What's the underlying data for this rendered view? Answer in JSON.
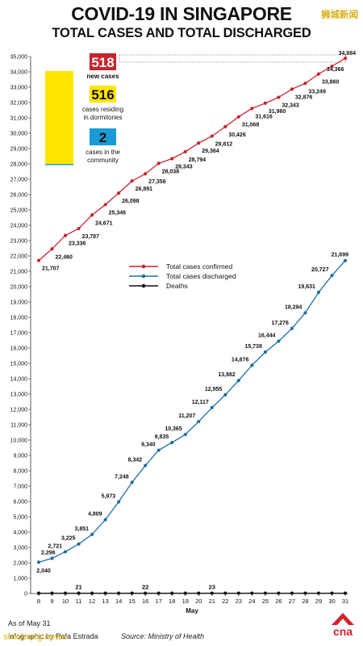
{
  "header": {
    "title": "COVID-19 IN SINGAPORE",
    "subtitle": "TOTAL CASES AND TOTAL DISCHARGED"
  },
  "watermark_top": "狮城新闻",
  "watermark_bottom": "shicheng.news",
  "callouts": {
    "new_cases": {
      "value": "518",
      "label": "new cases",
      "color": "#c8242c"
    },
    "dormitories": {
      "value": "516",
      "label_line1": "cases residing",
      "label_line2": "in dormitories",
      "color": "#ffe600"
    },
    "community": {
      "value": "2",
      "label_line1": "cases in the",
      "label_line2": "community",
      "color": "#1a9bd6"
    }
  },
  "chart_data": {
    "type": "line",
    "xlabel": "May",
    "x": [
      8,
      9,
      10,
      11,
      12,
      13,
      14,
      15,
      16,
      17,
      18,
      19,
      20,
      21,
      22,
      23,
      24,
      25,
      26,
      27,
      28,
      29,
      30,
      31
    ],
    "ylim": [
      0,
      35000
    ],
    "ytick_step": 1000,
    "grid": false,
    "legend_position": "center-left",
    "series": [
      {
        "name": "Total cases confirmed",
        "color": "#c8242c",
        "values": [
          21707,
          22460,
          23336,
          23787,
          24671,
          25346,
          26098,
          26891,
          27356,
          28038,
          28343,
          28794,
          29364,
          29812,
          30426,
          31068,
          31616,
          31960,
          32343,
          32876,
          33249,
          33860,
          34366,
          34884
        ],
        "labels": [
          "21,707",
          "22,460",
          "23,336",
          "23,787",
          "24,671",
          "25,346",
          "26,098",
          "26,891",
          "27,356",
          "28,038",
          "28,343",
          "28,794",
          "29,364",
          "29,812",
          "30,426",
          "31,068",
          "31,616",
          "31,960",
          "32,343",
          "32,876",
          "33,249",
          "33,860",
          "34,366",
          "34,884"
        ]
      },
      {
        "name": "Total cases discharged",
        "color": "#1f6fa3",
        "values": [
          2040,
          2296,
          2721,
          3225,
          3851,
          4809,
          5973,
          7248,
          8342,
          9340,
          9835,
          10365,
          11207,
          12117,
          12955,
          13882,
          14876,
          15738,
          16444,
          17276,
          18294,
          19631,
          20727,
          21699
        ],
        "labels": [
          "2,040",
          "2,296",
          "2,721",
          "3,225",
          "3,851",
          "4,809",
          "5,973",
          "7,248",
          "8,342",
          "9,340",
          "9,835",
          "10,365",
          "11,207",
          "12,117",
          "12,955",
          "13,882",
          "14,876",
          "15,738",
          "16,444",
          "17,276",
          "18,294",
          "19,631",
          "20,727",
          "21,699"
        ]
      },
      {
        "name": "Deaths",
        "color": "#111111",
        "values": [
          21,
          21,
          21,
          21,
          21,
          21,
          21,
          22,
          22,
          22,
          22,
          22,
          22,
          23,
          23,
          23,
          23,
          23,
          23,
          23,
          23,
          23,
          23,
          23
        ],
        "annotations": [
          {
            "x": 11,
            "label": "21"
          },
          {
            "x": 16,
            "label": "22"
          },
          {
            "x": 21,
            "label": "23"
          }
        ]
      }
    ]
  },
  "footer": {
    "as_of": "As of May 31",
    "credit": "Infographic by Rafa Estrada",
    "source": "Source: Ministry of Health",
    "logo_text": "cna"
  }
}
